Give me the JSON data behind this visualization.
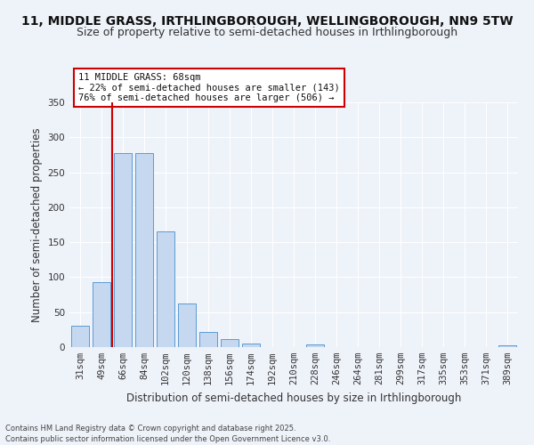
{
  "title": "11, MIDDLE GRASS, IRTHLINGBOROUGH, WELLINGBOROUGH, NN9 5TW",
  "subtitle": "Size of property relative to semi-detached houses in Irthlingborough",
  "xlabel": "Distribution of semi-detached houses by size in Irthlingborough",
  "ylabel": "Number of semi-detached properties",
  "categories": [
    "31sqm",
    "49sqm",
    "66sqm",
    "84sqm",
    "102sqm",
    "120sqm",
    "138sqm",
    "156sqm",
    "174sqm",
    "192sqm",
    "210sqm",
    "228sqm",
    "246sqm",
    "264sqm",
    "281sqm",
    "299sqm",
    "317sqm",
    "335sqm",
    "353sqm",
    "371sqm",
    "389sqm"
  ],
  "values": [
    30,
    93,
    278,
    278,
    165,
    62,
    22,
    11,
    5,
    0,
    0,
    4,
    0,
    0,
    0,
    0,
    0,
    0,
    0,
    0,
    2
  ],
  "bar_color": "#c5d8f0",
  "bar_edge_color": "#5b9bd5",
  "vline_index": 2,
  "vline_color": "#cc0000",
  "annotation_title": "11 MIDDLE GRASS: 68sqm",
  "annotation_line1": "← 22% of semi-detached houses are smaller (143)",
  "annotation_line2": "76% of semi-detached houses are larger (506) →",
  "annotation_box_color": "#ffffff",
  "annotation_box_edge": "#cc0000",
  "ylim": [
    0,
    350
  ],
  "yticks": [
    0,
    50,
    100,
    150,
    200,
    250,
    300,
    350
  ],
  "background_color": "#eef2f9",
  "grid_color": "#ffffff",
  "footer_line1": "Contains HM Land Registry data © Crown copyright and database right 2025.",
  "footer_line2": "Contains public sector information licensed under the Open Government Licence v3.0.",
  "title_fontsize": 10,
  "subtitle_fontsize": 9,
  "xlabel_fontsize": 8.5,
  "ylabel_fontsize": 8.5,
  "tick_fontsize": 7.5,
  "annotation_fontsize": 7.5,
  "footer_fontsize": 6
}
